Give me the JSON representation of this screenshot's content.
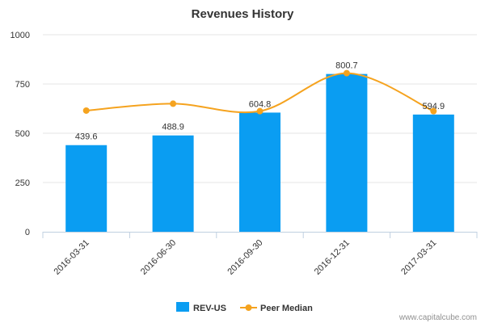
{
  "chart_data": {
    "type": "bar",
    "title": "Revenues History",
    "categories": [
      "2016-03-31",
      "2016-06-30",
      "2016-09-30",
      "2016-12-31",
      "2017-03-31"
    ],
    "series": [
      {
        "name": "REV-US",
        "kind": "bar",
        "color": "#0a9df2",
        "values": [
          439.6,
          488.9,
          604.8,
          800.7,
          594.9
        ],
        "data_labels": [
          "439.6",
          "488.9",
          "604.8",
          "800.7",
          "594.9"
        ]
      },
      {
        "name": "Peer Median",
        "kind": "line",
        "color": "#f5a31f",
        "values": [
          615,
          650,
          612,
          805,
          612
        ]
      }
    ],
    "ylim": [
      0,
      1000
    ],
    "yticks": [
      "0",
      "250",
      "500",
      "750",
      "1000"
    ],
    "grid": true,
    "legend_position": "bottom-center"
  },
  "credit": "www.capitalcube.com"
}
